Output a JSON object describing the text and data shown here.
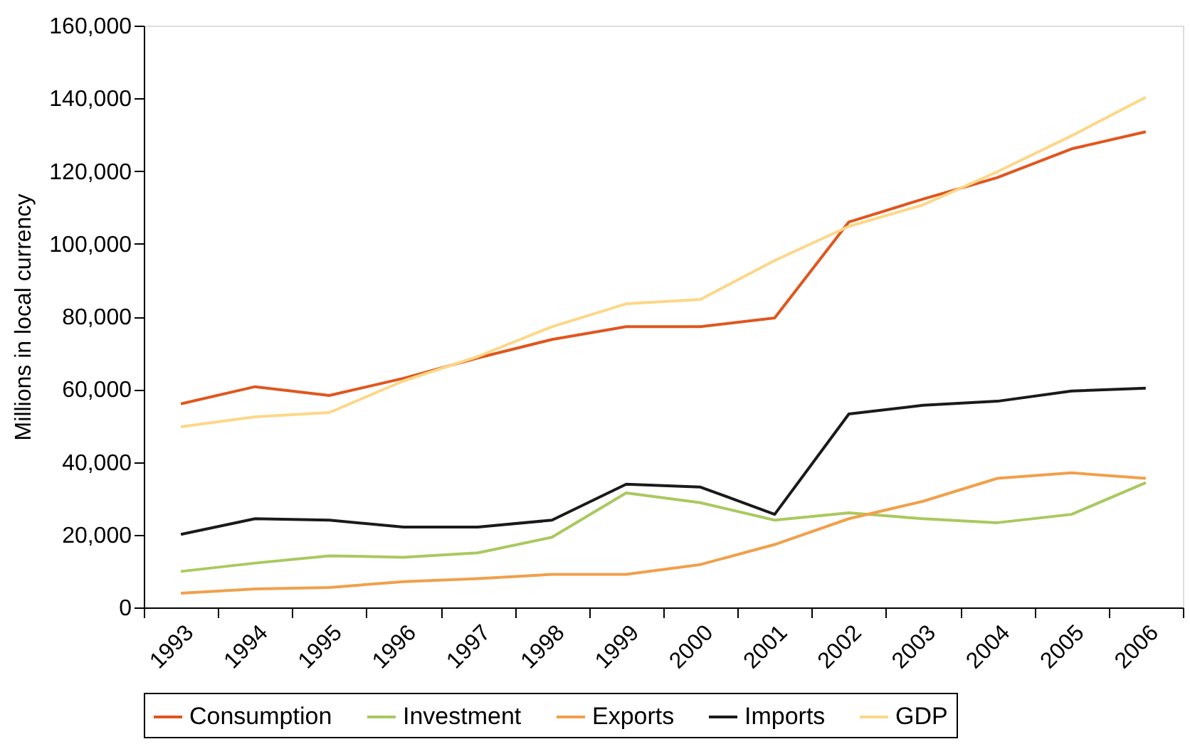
{
  "chart_data": {
    "type": "line",
    "ylabel": "Millions in local currency",
    "categories": [
      "1993",
      "1994",
      "1995",
      "1996",
      "1997",
      "1998",
      "1999",
      "2000",
      "2001",
      "2002",
      "2003",
      "2004",
      "2005",
      "2006"
    ],
    "series": [
      {
        "name": "Consumption",
        "color": "#e0561e",
        "values": [
          56000,
          60700,
          58300,
          63000,
          68600,
          73700,
          77200,
          77200,
          79600,
          106000,
          112300,
          118200,
          126100,
          130800
        ]
      },
      {
        "name": "Investment",
        "color": "#a9c95e",
        "values": [
          9900,
          12200,
          14200,
          13800,
          15000,
          19300,
          31500,
          28800,
          24000,
          26000,
          24400,
          23300,
          25600,
          34300
        ]
      },
      {
        "name": "Exports",
        "color": "#f0a04b",
        "values": [
          3900,
          5100,
          5500,
          7100,
          7900,
          9100,
          9100,
          11800,
          17300,
          24400,
          29200,
          35500,
          37000,
          35500
        ]
      },
      {
        "name": "Imports",
        "color": "#1a1a1a",
        "values": [
          20100,
          24400,
          24000,
          22100,
          22100,
          24000,
          33900,
          33100,
          25600,
          53200,
          55600,
          56700,
          59500,
          60300
        ]
      },
      {
        "name": "GDP",
        "color": "#fdd788",
        "values": [
          49700,
          52400,
          53600,
          62300,
          69000,
          77200,
          83500,
          84700,
          95400,
          104800,
          110700,
          119800,
          129700,
          140300
        ]
      }
    ],
    "ylim": [
      0,
      160000
    ],
    "yticks": [
      0,
      {
        "value": 20000,
        "label": "20,000"
      },
      {
        "value": 40000,
        "label": "40,000"
      },
      {
        "value": 60000,
        "label": "60,000"
      },
      {
        "value": 80000,
        "label": "80,000"
      },
      {
        "value": 100000,
        "label": "100,000"
      },
      {
        "value": 120000,
        "label": "120,000"
      },
      {
        "value": 140000,
        "label": "140,000"
      },
      {
        "value": 160000,
        "label": "160,000"
      }
    ],
    "grid": false,
    "legend": "bottom"
  }
}
